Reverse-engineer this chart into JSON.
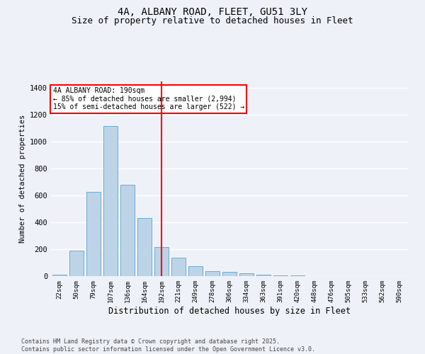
{
  "title1": "4A, ALBANY ROAD, FLEET, GU51 3LY",
  "title2": "Size of property relative to detached houses in Fleet",
  "xlabel": "Distribution of detached houses by size in Fleet",
  "ylabel": "Number of detached properties",
  "categories": [
    "22sqm",
    "50sqm",
    "79sqm",
    "107sqm",
    "136sqm",
    "164sqm",
    "192sqm",
    "221sqm",
    "249sqm",
    "278sqm",
    "306sqm",
    "334sqm",
    "363sqm",
    "391sqm",
    "420sqm",
    "448sqm",
    "476sqm",
    "505sqm",
    "533sqm",
    "562sqm",
    "590sqm"
  ],
  "values": [
    10,
    190,
    630,
    1120,
    680,
    430,
    215,
    135,
    75,
    35,
    30,
    20,
    10,
    5,
    3,
    2,
    1,
    0,
    0,
    0,
    0
  ],
  "bar_color": "#bdd4e8",
  "bar_edge_color": "#6aaad4",
  "highlight_index": 6,
  "highlight_line_color": "red",
  "annotation_text": "4A ALBANY ROAD: 190sqm\n← 85% of detached houses are smaller (2,994)\n15% of semi-detached houses are larger (522) →",
  "annotation_box_color": "white",
  "annotation_box_edge_color": "red",
  "ylim": [
    0,
    1450
  ],
  "yticks": [
    0,
    200,
    400,
    600,
    800,
    1000,
    1200,
    1400
  ],
  "background_color": "#eef2f8",
  "footer_line1": "Contains HM Land Registry data © Crown copyright and database right 2025.",
  "footer_line2": "Contains public sector information licensed under the Open Government Licence v3.0.",
  "grid_color": "#ffffff",
  "title_fontsize": 10,
  "subtitle_fontsize": 9
}
